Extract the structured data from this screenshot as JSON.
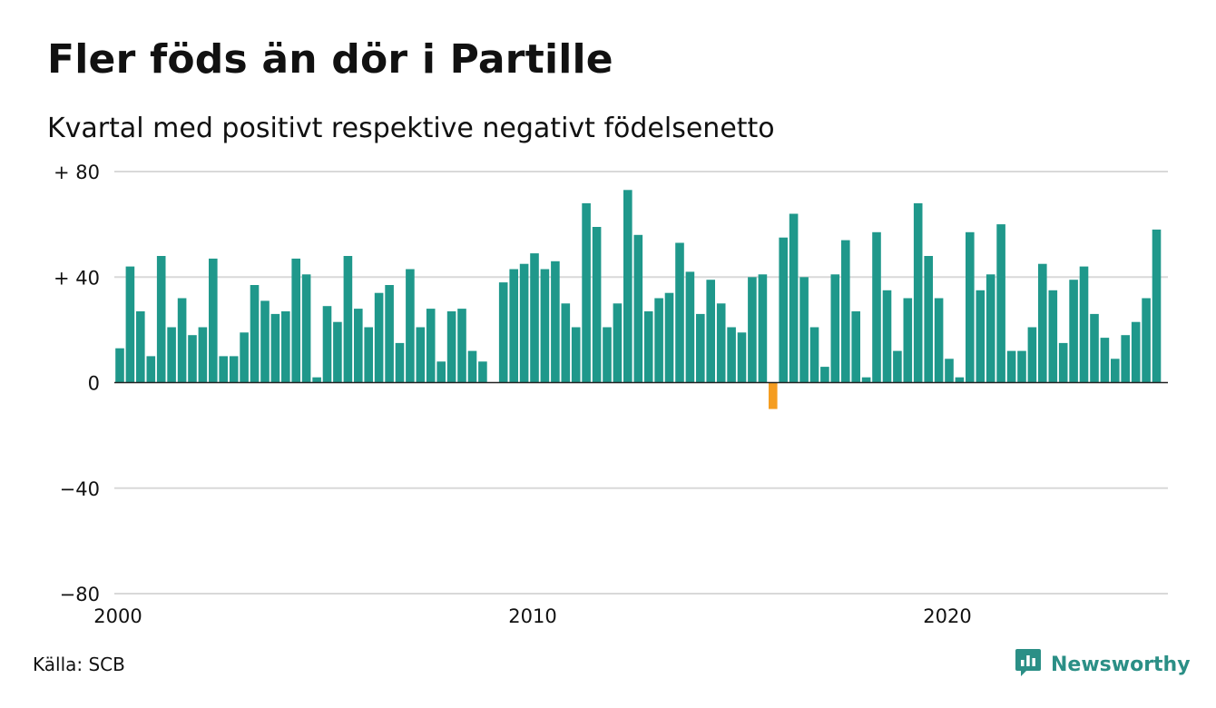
{
  "title": "Fler föds än dör i Partille",
  "subtitle": "Kvartal med positivt respektive negativt födelsenetto",
  "source": "Källa: SCB",
  "brand": {
    "name": "Newsworthy",
    "icon": "newsworthy-logo-icon"
  },
  "colors": {
    "positive": "#1f988b",
    "negative": "#f59d20",
    "grid": "#d9d9d9",
    "zero": "#222222",
    "brand": "#2b8f86"
  },
  "chart_data": {
    "type": "bar",
    "x_start": 2000.0,
    "x_step": 0.25,
    "ylim": [
      -80,
      80
    ],
    "yticks": [
      {
        "value": 80,
        "label": "+ 80"
      },
      {
        "value": 40,
        "label": "+ 40"
      },
      {
        "value": 0,
        "label": "0"
      },
      {
        "value": -40,
        "label": "−40"
      },
      {
        "value": -80,
        "label": "−80"
      }
    ],
    "xticks": [
      {
        "value": 2000,
        "label": "2000"
      },
      {
        "value": 2010,
        "label": "2010"
      },
      {
        "value": 2020,
        "label": "2020"
      }
    ],
    "grid": true,
    "legend": false,
    "values": [
      13,
      44,
      27,
      10,
      48,
      21,
      32,
      18,
      21,
      47,
      10,
      10,
      19,
      37,
      31,
      26,
      27,
      47,
      41,
      2,
      29,
      23,
      48,
      28,
      21,
      34,
      37,
      15,
      43,
      21,
      28,
      8,
      27,
      28,
      12,
      8,
      0,
      38,
      43,
      45,
      49,
      43,
      46,
      30,
      21,
      68,
      59,
      21,
      30,
      73,
      56,
      27,
      32,
      34,
      53,
      42,
      26,
      39,
      30,
      21,
      19,
      40,
      41,
      -10,
      55,
      64,
      40,
      21,
      6,
      41,
      54,
      27,
      2,
      57,
      35,
      12,
      32,
      68,
      48,
      32,
      9,
      2,
      57,
      35,
      41,
      60,
      12,
      12,
      21,
      45,
      35,
      15,
      39,
      44,
      26,
      17,
      9,
      18,
      23,
      32,
      58
    ]
  }
}
